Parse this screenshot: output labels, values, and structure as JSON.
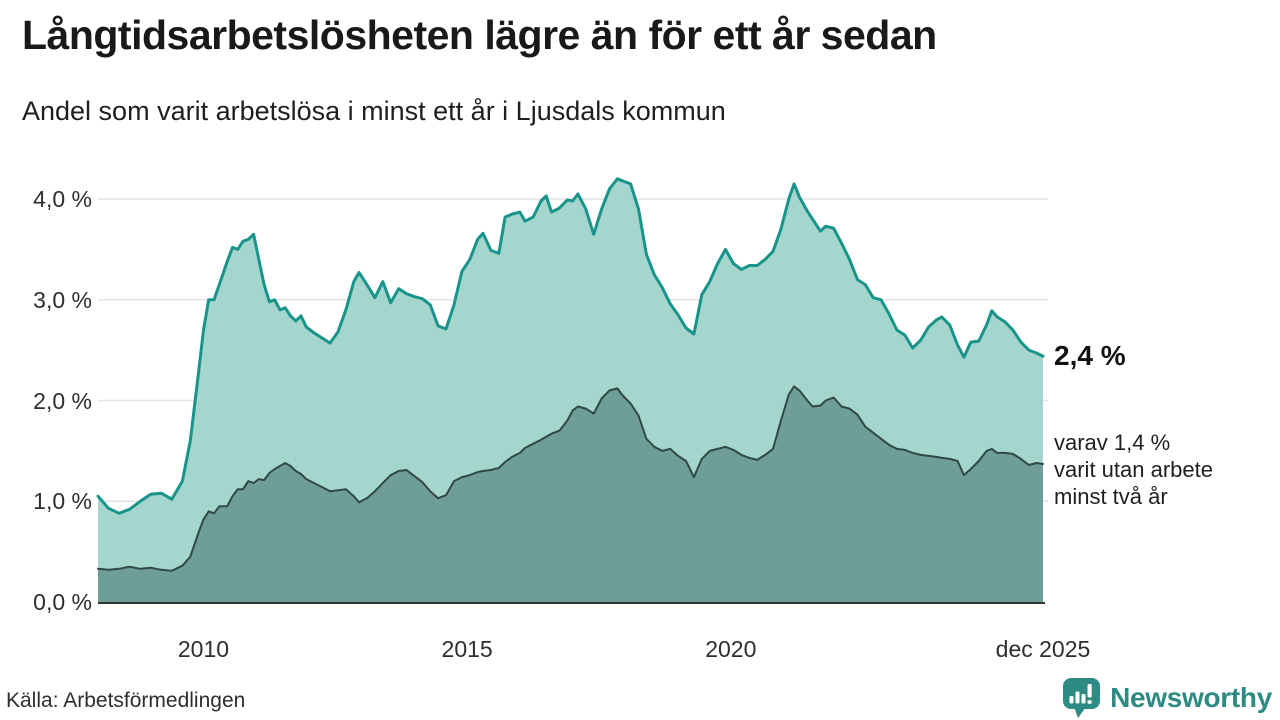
{
  "header": {
    "title": "Långtidsarbetslösheten lägre än för ett år sedan",
    "subtitle": "Andel som varit arbetslösa i minst ett år i Ljusdals kommun"
  },
  "annotations": {
    "end_value_label": "2,4 %",
    "secondary_note_lines": [
      "varav 1,4 %",
      "varit utan arbete",
      "minst två år"
    ]
  },
  "footer": {
    "source": "Källa: Arbetsförmedlingen",
    "brand": "Newsworthy",
    "brand_color": "#2d8b83",
    "logo_icon": "newsworthy-speech-bubble-chart-icon"
  },
  "chart_data": {
    "type": "area",
    "title": "Långtidsarbetslösheten lägre än för ett år sedan",
    "subtitle": "Andel som varit arbetslösa i minst ett år i Ljusdals kommun",
    "xlabel": "",
    "ylabel": "",
    "xlim": [
      2008.0,
      2025.92
    ],
    "ylim": [
      0,
      4.35
    ],
    "grid": true,
    "grid_color": "#e2e2e7",
    "axis_color": "#333333",
    "background": "#ffffff",
    "legend_position": "none",
    "y_ticks": [
      {
        "value": 0,
        "label": "0,0 %"
      },
      {
        "value": 1,
        "label": "1,0 %"
      },
      {
        "value": 2,
        "label": "2,0 %"
      },
      {
        "value": 3,
        "label": "3,0 %"
      },
      {
        "value": 4,
        "label": "4,0 %"
      }
    ],
    "x_ticks": [
      {
        "value": 2010,
        "label": "2010"
      },
      {
        "value": 2015,
        "label": "2015"
      },
      {
        "value": 2020,
        "label": "2020"
      },
      {
        "value": 2025.92,
        "label": "dec 2025"
      }
    ],
    "x": [
      2008.0,
      2008.2,
      2008.4,
      2008.6,
      2008.8,
      2009.0,
      2009.2,
      2009.4,
      2009.6,
      2009.75,
      2009.9,
      2010.0,
      2010.1,
      2010.2,
      2010.3,
      2010.45,
      2010.55,
      2010.65,
      2010.75,
      2010.85,
      2010.95,
      2011.05,
      2011.15,
      2011.25,
      2011.35,
      2011.45,
      2011.55,
      2011.65,
      2011.75,
      2011.85,
      2011.95,
      2012.1,
      2012.25,
      2012.4,
      2012.55,
      2012.7,
      2012.85,
      2012.95,
      2013.1,
      2013.25,
      2013.4,
      2013.55,
      2013.7,
      2013.85,
      2014.0,
      2014.15,
      2014.3,
      2014.45,
      2014.6,
      2014.75,
      2014.9,
      2015.05,
      2015.2,
      2015.3,
      2015.45,
      2015.6,
      2015.72,
      2015.85,
      2016.0,
      2016.1,
      2016.25,
      2016.4,
      2016.5,
      2016.6,
      2016.75,
      2016.9,
      2017.0,
      2017.1,
      2017.25,
      2017.4,
      2017.55,
      2017.7,
      2017.85,
      2017.95,
      2018.1,
      2018.25,
      2018.4,
      2018.55,
      2018.7,
      2018.85,
      2019.0,
      2019.15,
      2019.3,
      2019.45,
      2019.6,
      2019.75,
      2019.9,
      2020.05,
      2020.2,
      2020.35,
      2020.5,
      2020.65,
      2020.8,
      2020.95,
      2021.1,
      2021.2,
      2021.3,
      2021.45,
      2021.55,
      2021.7,
      2021.8,
      2021.95,
      2022.1,
      2022.25,
      2022.4,
      2022.55,
      2022.7,
      2022.85,
      2023.0,
      2023.15,
      2023.3,
      2023.45,
      2023.6,
      2023.75,
      2023.9,
      2024.0,
      2024.15,
      2024.3,
      2024.42,
      2024.55,
      2024.7,
      2024.85,
      2024.95,
      2025.05,
      2025.2,
      2025.35,
      2025.5,
      2025.65,
      2025.8,
      2025.92
    ],
    "series": [
      {
        "name": "Andel arbetslösa minst ett år",
        "line_color": "#18948a",
        "fill_color": "#a5d6ce",
        "line_width": 3,
        "end_value_pct": 2.4,
        "values": [
          1.05,
          0.93,
          0.88,
          0.92,
          1.0,
          1.07,
          1.08,
          1.02,
          1.2,
          1.6,
          2.25,
          2.7,
          3.0,
          3.0,
          3.15,
          3.38,
          3.52,
          3.5,
          3.58,
          3.6,
          3.65,
          3.4,
          3.15,
          2.98,
          3.0,
          2.9,
          2.92,
          2.84,
          2.79,
          2.84,
          2.73,
          2.67,
          2.62,
          2.57,
          2.68,
          2.9,
          3.18,
          3.27,
          3.15,
          3.02,
          3.18,
          2.97,
          3.11,
          3.06,
          3.03,
          3.01,
          2.95,
          2.74,
          2.71,
          2.95,
          3.28,
          3.4,
          3.6,
          3.66,
          3.49,
          3.46,
          3.82,
          3.85,
          3.87,
          3.78,
          3.82,
          3.98,
          4.03,
          3.87,
          3.91,
          3.99,
          3.98,
          4.05,
          3.9,
          3.65,
          3.9,
          4.1,
          4.2,
          4.18,
          4.15,
          3.9,
          3.45,
          3.25,
          3.12,
          2.96,
          2.85,
          2.72,
          2.66,
          3.05,
          3.18,
          3.36,
          3.5,
          3.36,
          3.3,
          3.34,
          3.34,
          3.4,
          3.48,
          3.7,
          4.0,
          4.15,
          4.02,
          3.88,
          3.8,
          3.68,
          3.73,
          3.71,
          3.56,
          3.4,
          3.2,
          3.15,
          3.02,
          3.0,
          2.86,
          2.7,
          2.65,
          2.52,
          2.6,
          2.73,
          2.8,
          2.83,
          2.75,
          2.55,
          2.43,
          2.58,
          2.59,
          2.75,
          2.89,
          2.83,
          2.78,
          2.7,
          2.58,
          2.5,
          2.47,
          2.44
        ]
      },
      {
        "name": "Andel arbetslösa minst två år",
        "line_color": "#314946",
        "fill_color": "#6f9e98",
        "line_width": 2,
        "end_value_pct": 1.4,
        "values": [
          0.33,
          0.32,
          0.33,
          0.35,
          0.33,
          0.34,
          0.32,
          0.31,
          0.36,
          0.45,
          0.68,
          0.82,
          0.9,
          0.88,
          0.95,
          0.95,
          1.05,
          1.12,
          1.12,
          1.2,
          1.18,
          1.22,
          1.21,
          1.28,
          1.32,
          1.35,
          1.38,
          1.35,
          1.3,
          1.27,
          1.22,
          1.18,
          1.14,
          1.1,
          1.11,
          1.12,
          1.05,
          0.99,
          1.03,
          1.1,
          1.18,
          1.26,
          1.3,
          1.31,
          1.25,
          1.19,
          1.1,
          1.03,
          1.06,
          1.2,
          1.24,
          1.26,
          1.29,
          1.3,
          1.31,
          1.33,
          1.39,
          1.44,
          1.48,
          1.53,
          1.57,
          1.61,
          1.64,
          1.67,
          1.7,
          1.8,
          1.9,
          1.94,
          1.92,
          1.87,
          2.02,
          2.1,
          2.12,
          2.05,
          1.97,
          1.85,
          1.62,
          1.54,
          1.5,
          1.52,
          1.45,
          1.4,
          1.24,
          1.42,
          1.5,
          1.52,
          1.54,
          1.51,
          1.46,
          1.43,
          1.41,
          1.46,
          1.52,
          1.8,
          2.06,
          2.14,
          2.1,
          2.0,
          1.94,
          1.95,
          2.0,
          2.03,
          1.94,
          1.92,
          1.86,
          1.74,
          1.68,
          1.62,
          1.56,
          1.52,
          1.51,
          1.48,
          1.46,
          1.45,
          1.44,
          1.43,
          1.42,
          1.4,
          1.26,
          1.32,
          1.4,
          1.5,
          1.52,
          1.48,
          1.48,
          1.47,
          1.42,
          1.36,
          1.38,
          1.37
        ]
      }
    ]
  }
}
